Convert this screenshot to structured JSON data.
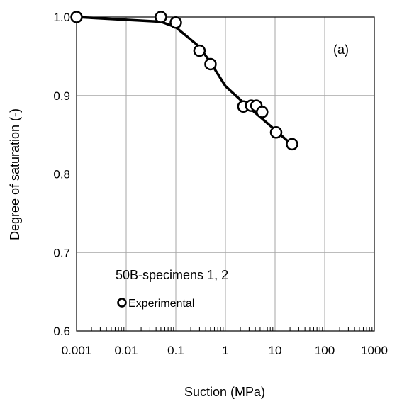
{
  "chart_data": {
    "type": "line",
    "xscale": "log",
    "xlim": [
      0.001,
      1000
    ],
    "ylim": [
      0.6,
      1.0
    ],
    "xticks": [
      0.001,
      0.01,
      0.1,
      1,
      10,
      100,
      1000
    ],
    "xtick_labels": [
      "0.001",
      "0.01",
      "0.1",
      "1",
      "10",
      "100",
      "1000"
    ],
    "yticks": [
      0.6,
      0.7,
      0.8,
      0.9,
      1.0
    ],
    "ytick_labels": [
      "0.6",
      "0.7",
      "0.8",
      "0.9",
      "1.0"
    ],
    "xlabel": "Suction (MPa)",
    "ylabel": "Degree of saturation (-)",
    "grid": true,
    "panel_label": "(a)",
    "annotation": "50B-specimens 1, 2",
    "legend_position": "bottom-left",
    "series": [
      {
        "name": "Experimental",
        "marker": "open-circle",
        "color": "#000000",
        "points": [
          [
            0.001,
            1.0
          ],
          [
            0.05,
            1.0
          ],
          [
            0.1,
            0.993
          ],
          [
            0.3,
            0.957
          ],
          [
            0.5,
            0.94
          ],
          [
            2.3,
            0.886
          ],
          [
            3.3,
            0.887
          ],
          [
            4.2,
            0.887
          ],
          [
            5.5,
            0.879
          ],
          [
            10.5,
            0.853
          ],
          [
            22,
            0.838
          ]
        ]
      },
      {
        "name": "",
        "marker": "none",
        "color": "#000000",
        "points": [
          [
            0.001,
            1.0
          ],
          [
            0.05,
            0.994
          ],
          [
            0.1,
            0.987
          ],
          [
            0.3,
            0.962
          ],
          [
            0.5,
            0.942
          ],
          [
            1,
            0.912
          ],
          [
            2.3,
            0.891
          ],
          [
            4,
            0.878
          ],
          [
            10.5,
            0.855
          ],
          [
            22,
            0.837
          ]
        ]
      }
    ]
  }
}
